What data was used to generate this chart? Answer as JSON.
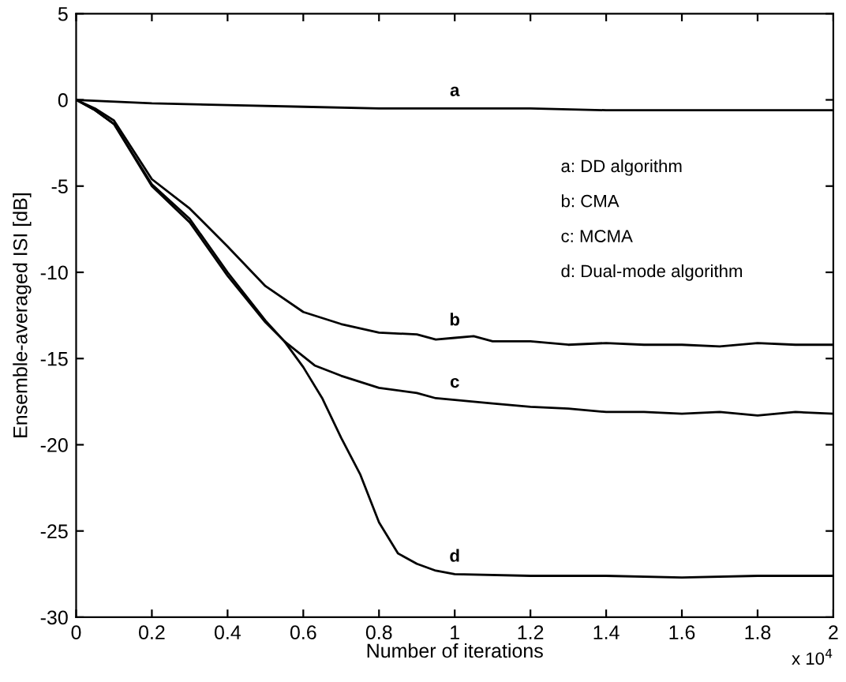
{
  "chart_data": {
    "type": "line",
    "xlabel": "Number of iterations",
    "ylabel": "Ensemble-averaged ISI [dB]",
    "xlim": [
      0,
      2
    ],
    "ylim": [
      -30,
      5
    ],
    "xticks": [
      0,
      0.2,
      0.4,
      0.6,
      0.8,
      1,
      1.2,
      1.4,
      1.6,
      1.8,
      2
    ],
    "yticks": [
      -30,
      -25,
      -20,
      -15,
      -10,
      -5,
      0,
      5
    ],
    "grid": false,
    "legend": false,
    "marker": "none",
    "line_style": "solid",
    "series": [
      {
        "name": "a",
        "color": "#000000",
        "x": [
          0,
          0.2,
          0.4,
          0.6,
          0.8,
          1,
          1.2,
          1.4,
          1.6,
          1.8,
          2
        ],
        "values": [
          0,
          -0.2,
          -0.3,
          -0.4,
          -0.5,
          -0.5,
          -0.5,
          -0.6,
          -0.6,
          -0.6,
          -0.6
        ]
      },
      {
        "name": "b",
        "color": "#000000",
        "x": [
          0,
          0.05,
          0.1,
          0.2,
          0.3,
          0.4,
          0.5,
          0.6,
          0.7,
          0.8,
          0.9,
          0.95,
          1,
          1.05,
          1.1,
          1.2,
          1.3,
          1.4,
          1.5,
          1.6,
          1.7,
          1.8,
          1.9,
          2
        ],
        "values": [
          0,
          -0.5,
          -1.2,
          -4.6,
          -6.3,
          -8.5,
          -10.8,
          -12.3,
          -13,
          -13.5,
          -13.6,
          -13.9,
          -13.8,
          -13.7,
          -14,
          -14,
          -14.2,
          -14.1,
          -14.2,
          -14.2,
          -14.3,
          -14.1,
          -14.2,
          -14.2
        ]
      },
      {
        "name": "c",
        "color": "#000000",
        "x": [
          0,
          0.05,
          0.1,
          0.2,
          0.3,
          0.4,
          0.5,
          0.55,
          0.63,
          0.7,
          0.8,
          0.9,
          0.95,
          1,
          1.1,
          1.2,
          1.3,
          1.4,
          1.5,
          1.6,
          1.7,
          1.8,
          1.9,
          2
        ],
        "values": [
          0,
          -0.6,
          -1.4,
          -4.9,
          -6.9,
          -10,
          -12.8,
          -14,
          -15.4,
          -16,
          -16.7,
          -17,
          -17.3,
          -17.4,
          -17.6,
          -17.8,
          -17.9,
          -18.1,
          -18.1,
          -18.2,
          -18.1,
          -18.3,
          -18.1,
          -18.2
        ]
      },
      {
        "name": "d",
        "color": "#000000",
        "x": [
          0,
          0.05,
          0.1,
          0.2,
          0.3,
          0.4,
          0.5,
          0.55,
          0.6,
          0.65,
          0.7,
          0.75,
          0.8,
          0.85,
          0.9,
          0.95,
          1,
          1.2,
          1.4,
          1.6,
          1.8,
          2
        ],
        "values": [
          0,
          -0.6,
          -1.4,
          -5,
          -7.1,
          -10.2,
          -12.9,
          -14,
          -15.5,
          -17.3,
          -19.6,
          -21.7,
          -24.5,
          -26.3,
          -26.9,
          -27.3,
          -27.5,
          -27.6,
          -27.6,
          -27.7,
          -27.6,
          -27.6
        ]
      }
    ],
    "annotations": [
      {
        "text": "a: DD algorithm"
      },
      {
        "text": "b: CMA"
      },
      {
        "text": "c: MCMA"
      },
      {
        "text": "d: Dual-mode algorithm"
      },
      "x 10$^{4}$"
    ]
  }
}
